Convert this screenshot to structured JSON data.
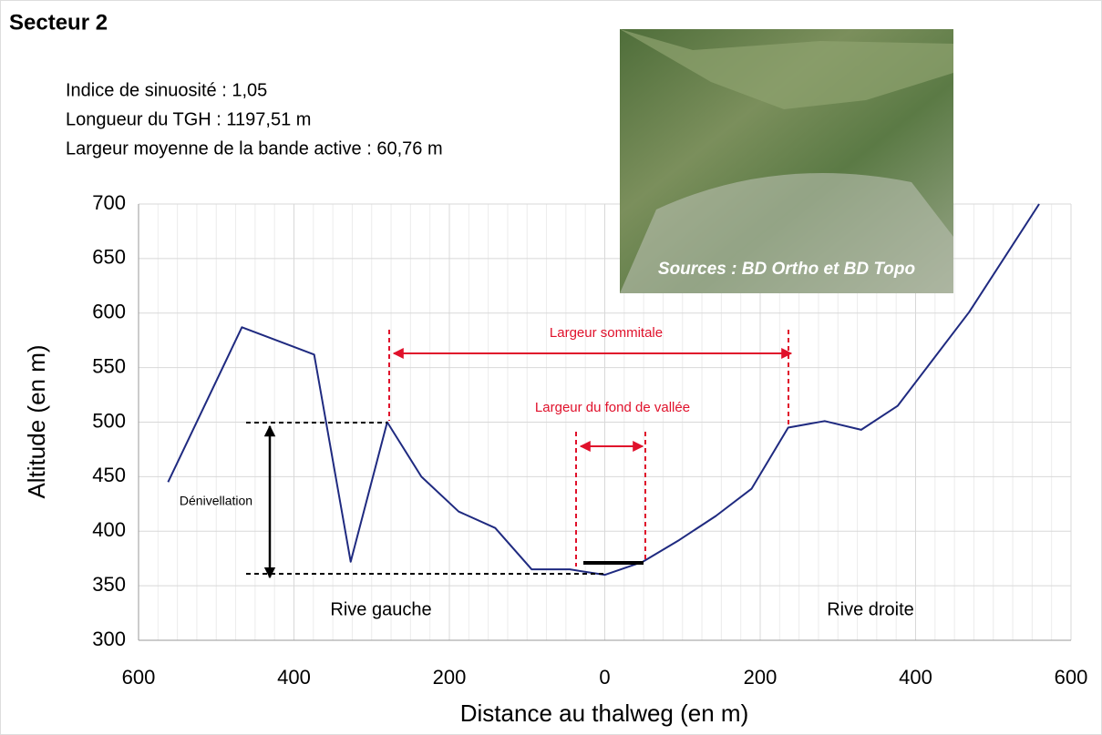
{
  "chart_data": {
    "type": "line",
    "title": "Secteur 2",
    "info": [
      "Indice de sinuosité : 1,05",
      "Longueur du TGH : 1197,51 m",
      "Largeur moyenne de la bande active : 60,76 m"
    ],
    "x_label": "Distance au thalweg (en m)",
    "y_label": "Altitude (en m)",
    "annotations": {
      "sommitale": "Largeur sommitale",
      "fond": "Largeur du fond de vallée",
      "denivellation": "Dénivellation",
      "rive_gauche": "Rive gauche",
      "rive_droite": "Rive droite",
      "sources": "Sources : BD Ortho et BD Topo"
    },
    "x": [
      -562,
      -467,
      -374,
      -327,
      -280,
      -236,
      -188,
      -141,
      -94,
      -45,
      0,
      49,
      96,
      143,
      189,
      236,
      283,
      330,
      377,
      469,
      559
    ],
    "series": [
      {
        "color": "#1f2a80",
        "values": [
          445,
          587,
          562,
          372,
          500,
          450,
          418,
          403,
          365,
          365,
          360,
          372,
          392,
          414,
          439,
          495,
          501,
          493,
          515,
          601,
          700
        ]
      }
    ],
    "xlim": [
      -600,
      600
    ],
    "xticks": [
      {
        "value": -600,
        "label": "600"
      },
      {
        "value": -400,
        "label": "400"
      },
      {
        "value": -200,
        "label": "200"
      },
      0,
      200,
      400,
      600
    ],
    "ylim": [
      300,
      700
    ],
    "yticks": [
      300,
      350,
      400,
      450,
      500,
      550,
      600,
      650,
      700
    ],
    "grid": true
  }
}
